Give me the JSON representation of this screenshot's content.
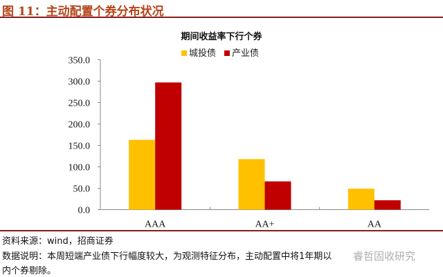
{
  "figure_title": "图 11：主动配置个券分布状况",
  "source": "资料来源：wind，招商证券",
  "note_line1": "数据说明：本周短端产业债下行幅度较大，为观测特征分布，主动配置中将1年期以",
  "note_line2": "内个券剔除。",
  "watermark": "睿哲固收研究",
  "chart_data": {
    "type": "bar",
    "title": "期间收益率下行个券",
    "categories": [
      "AAA",
      "AA+",
      "AA"
    ],
    "series": [
      {
        "name": "城投债",
        "color": "#ffc000",
        "values": [
          163,
          118,
          49
        ]
      },
      {
        "name": "产业债",
        "color": "#c00000",
        "values": [
          297,
          66,
          22
        ]
      }
    ],
    "ylim": [
      0,
      350
    ],
    "yticks": [
      "0.0",
      "50.0",
      "100.0",
      "150.0",
      "200.0",
      "250.0",
      "300.0",
      "350.0"
    ],
    "legend": "top",
    "grid": false
  }
}
